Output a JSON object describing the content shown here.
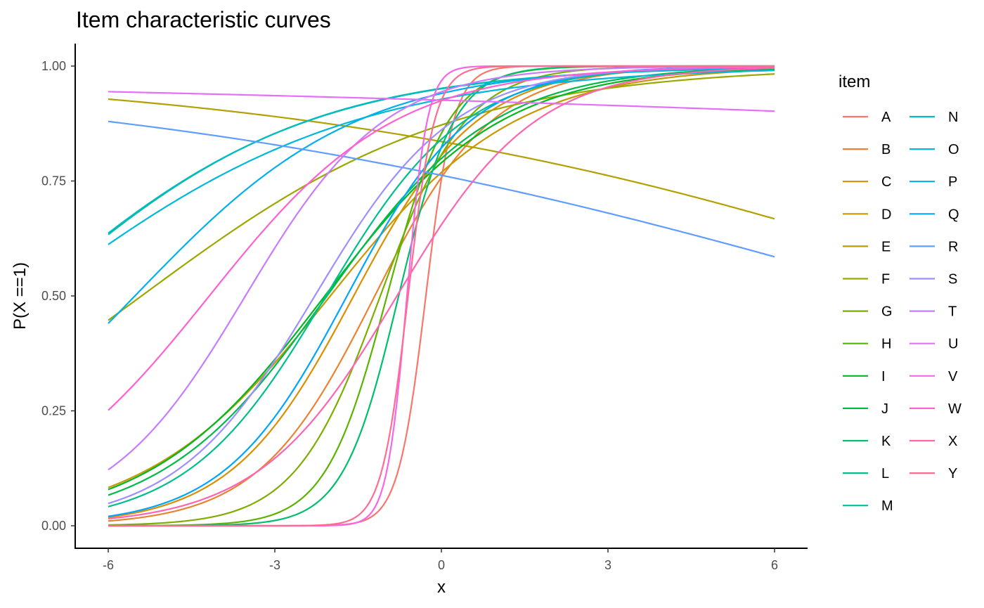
{
  "chart_data": {
    "type": "line",
    "title": "Item characteristic curves",
    "xlabel": "x",
    "ylabel": "P(X ==1)",
    "xlim": [
      -6,
      6
    ],
    "ylim": [
      0,
      1
    ],
    "x_ticks": [
      -6,
      -3,
      0,
      3,
      6
    ],
    "x_tick_labels": [
      "-6",
      "-3",
      "0",
      "3",
      "6"
    ],
    "y_ticks": [
      0,
      0.25,
      0.5,
      0.75,
      1
    ],
    "y_tick_labels": [
      "0.00",
      "0.25",
      "0.50",
      "0.75",
      "1.00"
    ],
    "grid": false,
    "legend": {
      "title": "item",
      "position": "right",
      "columns": 2
    },
    "curve_model": "P(x) = 1 / (1 + exp(-a * (x - b)))",
    "series": [
      {
        "name": "A",
        "a": 4.0,
        "b": -0.28,
        "color": "#F8766D"
      },
      {
        "name": "B",
        "a": 0.95,
        "b": -1.2,
        "color": "#EA8331"
      },
      {
        "name": "C",
        "a": 0.9,
        "b": -1.58,
        "color": "#DB8E00"
      },
      {
        "name": "D",
        "a": 0.6,
        "b": -2.0,
        "color": "#C79800"
      },
      {
        "name": "E",
        "a": -0.155,
        "b": 10.5,
        "color": "#B3A000"
      },
      {
        "name": "F",
        "a": 0.355,
        "b": -5.4,
        "color": "#9CA700"
      },
      {
        "name": "G",
        "a": 1.3,
        "b": -1.1,
        "color": "#7CAE00"
      },
      {
        "name": "H",
        "a": 1.8,
        "b": -0.98,
        "color": "#5BB300"
      },
      {
        "name": "I",
        "a": 0.63,
        "b": -2.1,
        "color": "#00B81F"
      },
      {
        "name": "J",
        "a": 0.67,
        "b": -2.06,
        "color": "#00BB4B"
      },
      {
        "name": "K",
        "a": 2.0,
        "b": -0.77,
        "color": "#00BE6C"
      },
      {
        "name": "L",
        "a": 0.8,
        "b": -2.08,
        "color": "#00BF8B"
      },
      {
        "name": "M",
        "a": 0.405,
        "b": -7.35,
        "color": "#00BDA5"
      },
      {
        "name": "N",
        "a": 0.4,
        "b": -7.4,
        "color": "#00BCC1"
      },
      {
        "name": "O",
        "a": 0.35,
        "b": -7.3,
        "color": "#00B8D9"
      },
      {
        "name": "P",
        "a": 0.5,
        "b": -5.52,
        "color": "#00B0EB"
      },
      {
        "name": "Q",
        "a": 0.9,
        "b": -1.7,
        "color": "#00A5FF"
      },
      {
        "name": "R",
        "a": -0.137,
        "b": 8.51,
        "color": "#619CFF"
      },
      {
        "name": "S",
        "a": 0.8,
        "b": -2.28,
        "color": "#9E8EFF"
      },
      {
        "name": "T",
        "a": 0.8,
        "b": -3.53,
        "color": "#C77CFF"
      },
      {
        "name": "U",
        "a": -0.051,
        "b": 49.5,
        "color": "#E56FFA"
      },
      {
        "name": "V",
        "a": 5.5,
        "b": -0.62,
        "color": "#F766E5"
      },
      {
        "name": "W",
        "a": 0.6,
        "b": -4.18,
        "color": "#FE61CF"
      },
      {
        "name": "X",
        "a": 0.8,
        "b": -0.8,
        "color": "#FF64B0"
      },
      {
        "name": "Y",
        "a": 4.2,
        "b": -0.6,
        "color": "#FF6C91"
      }
    ]
  }
}
